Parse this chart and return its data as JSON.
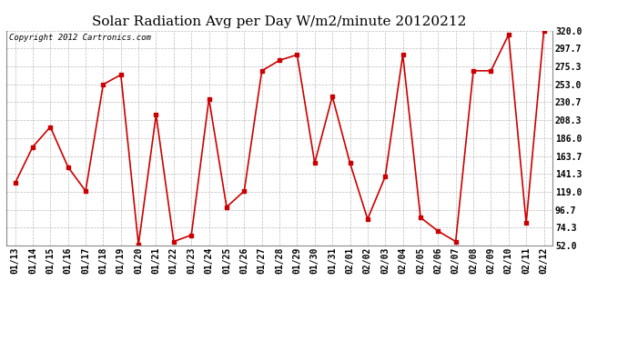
{
  "title": "Solar Radiation Avg per Day W/m2/minute 20120212",
  "copyright": "Copyright 2012 Cartronics.com",
  "labels": [
    "01/13",
    "01/14",
    "01/15",
    "01/16",
    "01/17",
    "01/18",
    "01/19",
    "01/20",
    "01/21",
    "01/22",
    "01/23",
    "01/24",
    "01/25",
    "01/26",
    "01/27",
    "01/28",
    "01/29",
    "01/30",
    "01/31",
    "02/01",
    "02/02",
    "02/03",
    "02/04",
    "02/05",
    "02/06",
    "02/07",
    "02/08",
    "02/09",
    "02/10",
    "02/11",
    "02/12"
  ],
  "values": [
    130,
    175,
    200,
    150,
    120,
    253,
    265,
    53,
    215,
    57,
    65,
    235,
    100,
    120,
    270,
    283,
    290,
    155,
    238,
    155,
    85,
    138,
    290,
    87,
    70,
    57,
    270,
    270,
    315,
    80,
    320
  ],
  "line_color": "#cc0000",
  "marker": "s",
  "marker_size": 3,
  "ylim": [
    52.0,
    320.0
  ],
  "yticks": [
    52.0,
    74.3,
    96.7,
    119.0,
    141.3,
    163.7,
    186.0,
    208.3,
    230.7,
    253.0,
    275.3,
    297.7,
    320.0
  ],
  "bg_color": "#ffffff",
  "grid_color": "#bbbbbb",
  "title_fontsize": 11,
  "tick_fontsize": 7,
  "copyright_fontsize": 6.5
}
